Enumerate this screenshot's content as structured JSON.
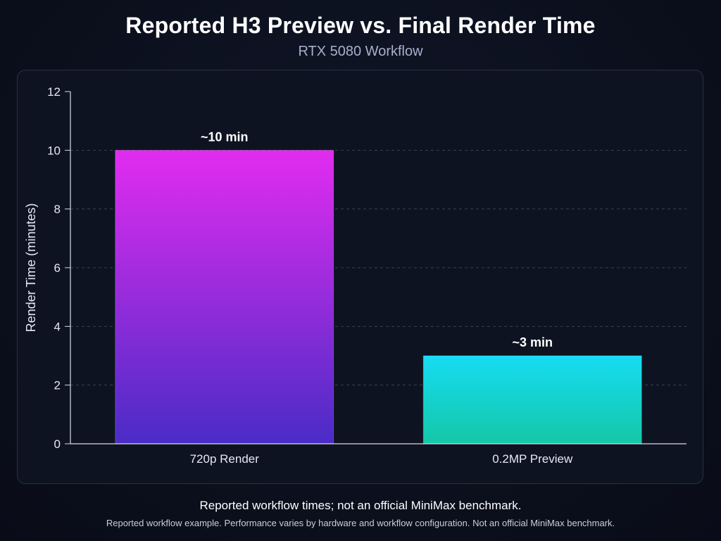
{
  "chart_data": {
    "type": "bar",
    "title": "Reported H3 Preview vs. Final Render Time",
    "subtitle": "RTX 5080 Workflow",
    "xlabel": "",
    "ylabel": "Render Time (minutes)",
    "categories": [
      "720p Render",
      "0.2MP Preview"
    ],
    "values": [
      10,
      3
    ],
    "data_labels": [
      "~10 min",
      "~3 min"
    ],
    "ylim": [
      0,
      12
    ],
    "yticks": [
      0,
      2,
      4,
      6,
      8,
      10,
      12
    ],
    "grid": true,
    "legend": "none",
    "colors": {
      "bar_1_top": "#e22cf0",
      "bar_1_bottom": "#4a2cc6",
      "bar_2_top": "#16dcf4",
      "bar_2_bottom": "#14c7a6"
    }
  },
  "footer": {
    "main": "Reported workflow times; not an official MiniMax benchmark.",
    "note": "Reported workflow example. Performance varies by hardware and workflow configuration. Not an official MiniMax benchmark."
  },
  "colors": {
    "background": "#0b0f1c",
    "panel": "#0e1322",
    "panel_border": "#2a3044",
    "grid": "#3a4054",
    "axis": "#d7dbe6",
    "subtitle": "#a7b0cc"
  }
}
